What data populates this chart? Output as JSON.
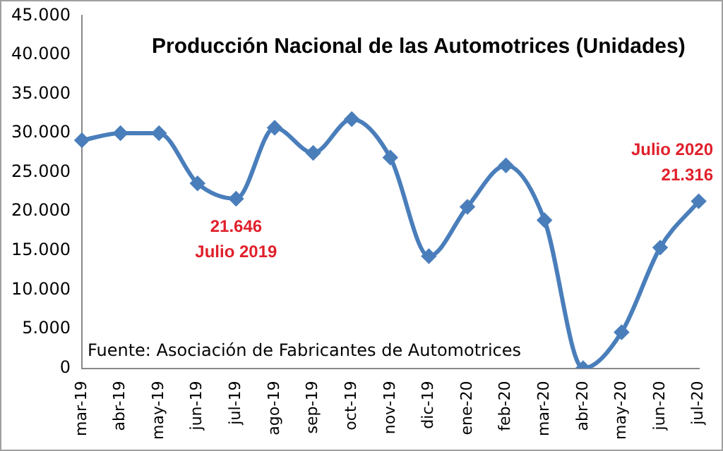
{
  "chart_data": {
    "type": "line",
    "title": "Producción Nacional de las Automotrices (Unidades)",
    "categories": [
      "mar-19",
      "abr-19",
      "may-19",
      "jun-19",
      "jul-19",
      "ago-19",
      "sep-19",
      "oct-19",
      "nov-19",
      "dic-19",
      "ene-20",
      "feb-20",
      "mar-20",
      "abr-20",
      "may-20",
      "jun-20",
      "jul-20"
    ],
    "series": [
      {
        "color": "#4a7ebb",
        "values": [
          29100,
          30000,
          30000,
          23600,
          21646,
          30700,
          27500,
          31800,
          26900,
          14300,
          20600,
          25900,
          18900,
          0,
          4600,
          15400,
          21316
        ]
      }
    ],
    "ylim": [
      0,
      45000
    ],
    "yticks": [
      {
        "value": 0,
        "label": "0"
      },
      {
        "value": 5000,
        "label": "5.000"
      },
      {
        "value": 10000,
        "label": "10.000"
      },
      {
        "value": 15000,
        "label": "15.000"
      },
      {
        "value": 20000,
        "label": "20.000"
      },
      {
        "value": 25000,
        "label": "25.000"
      },
      {
        "value": 30000,
        "label": "30.000"
      },
      {
        "value": 35000,
        "label": "35.000"
      },
      {
        "value": 40000,
        "label": "40.000"
      },
      {
        "value": 45000,
        "label": "45.000"
      }
    ],
    "annotations": [
      {
        "text": "21.646",
        "x": "jul-19",
        "y": 21646
      },
      {
        "text": "Julio 2019",
        "x": "jul-19",
        "y": 21646
      },
      {
        "text": "21.316",
        "x": "jul-20",
        "y": 21316
      },
      {
        "text": "Julio 2020",
        "x": "jul-20",
        "y": 21316
      },
      "Fuente: Asociación de Fabricantes de Automotrices"
    ],
    "grid": false,
    "legend": false,
    "marker": "diamond",
    "line_style": "solid"
  }
}
